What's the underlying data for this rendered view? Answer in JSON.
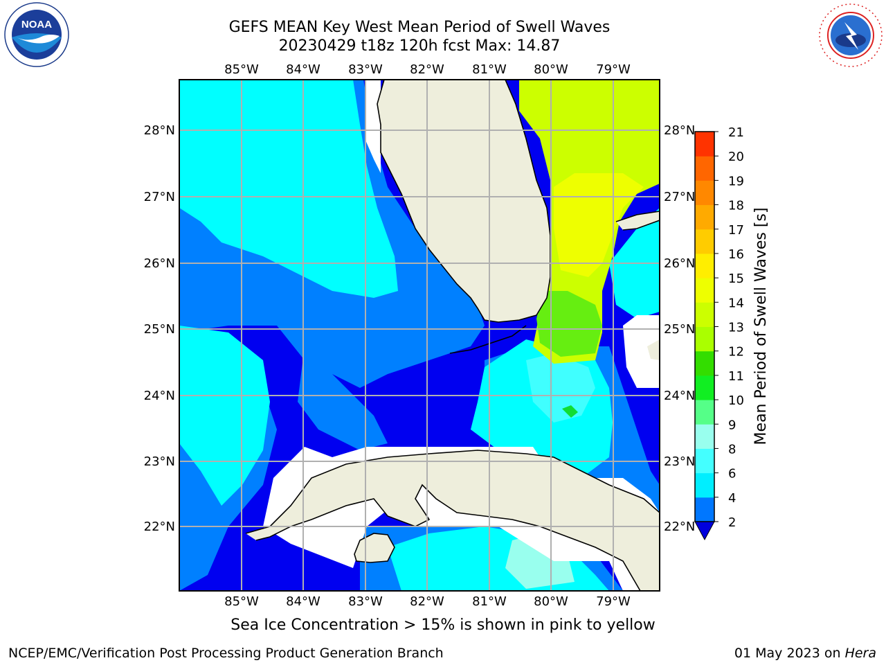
{
  "header": {
    "title_line1": "GEFS MEAN Key West Mean Period of Swell Waves",
    "title_line2": "20230429 t18z 120h fcst   Max: 14.87"
  },
  "map": {
    "lon_labels": [
      "85°W",
      "84°W",
      "83°W",
      "82°W",
      "81°W",
      "80°W",
      "79°W"
    ],
    "lat_labels": [
      "28°N",
      "27°N",
      "26°N",
      "25°N",
      "24°N",
      "23°N",
      "22°N"
    ],
    "colors": {
      "land": "#eeeedc",
      "ocean_lt2": "#0000f0",
      "c2_4": "#0080ff",
      "c4_6": "#00ffff",
      "c6_8": "#40ffff",
      "c8_9": "#99ffee",
      "c10_11": "#11dd33",
      "c11_12": "#66ee11",
      "c12_13": "#ccff00",
      "c13_15": "#eeff00"
    }
  },
  "colorbar": {
    "label": "Mean Period of Swell Waves [s]",
    "ticks": [
      "2",
      "4",
      "6",
      "8",
      "9",
      "10",
      "11",
      "12",
      "13",
      "14",
      "15",
      "16",
      "17",
      "18",
      "19",
      "20",
      "21"
    ],
    "bands": [
      "#0077ff",
      "#00eeff",
      "#44ffff",
      "#99ffee",
      "#55ff88",
      "#11ee22",
      "#33dd00",
      "#aaff00",
      "#ccff00",
      "#eeff00",
      "#ffee00",
      "#ffcc00",
      "#ffaa00",
      "#ff8800",
      "#ff6600",
      "#ff3300",
      "#ff0000"
    ],
    "extend_color": "#0000dd"
  },
  "note": "Sea Ice Concentration > 15% is shown in pink to yellow",
  "footer": {
    "left": "NCEP/EMC/Verification Post Processing Product Generation Branch",
    "date": "01 May 2023 on ",
    "host": "Hera"
  },
  "logos": {
    "noaa_text": "NOAA",
    "nws_text": "NATIONAL WEATHER SERVICE"
  }
}
